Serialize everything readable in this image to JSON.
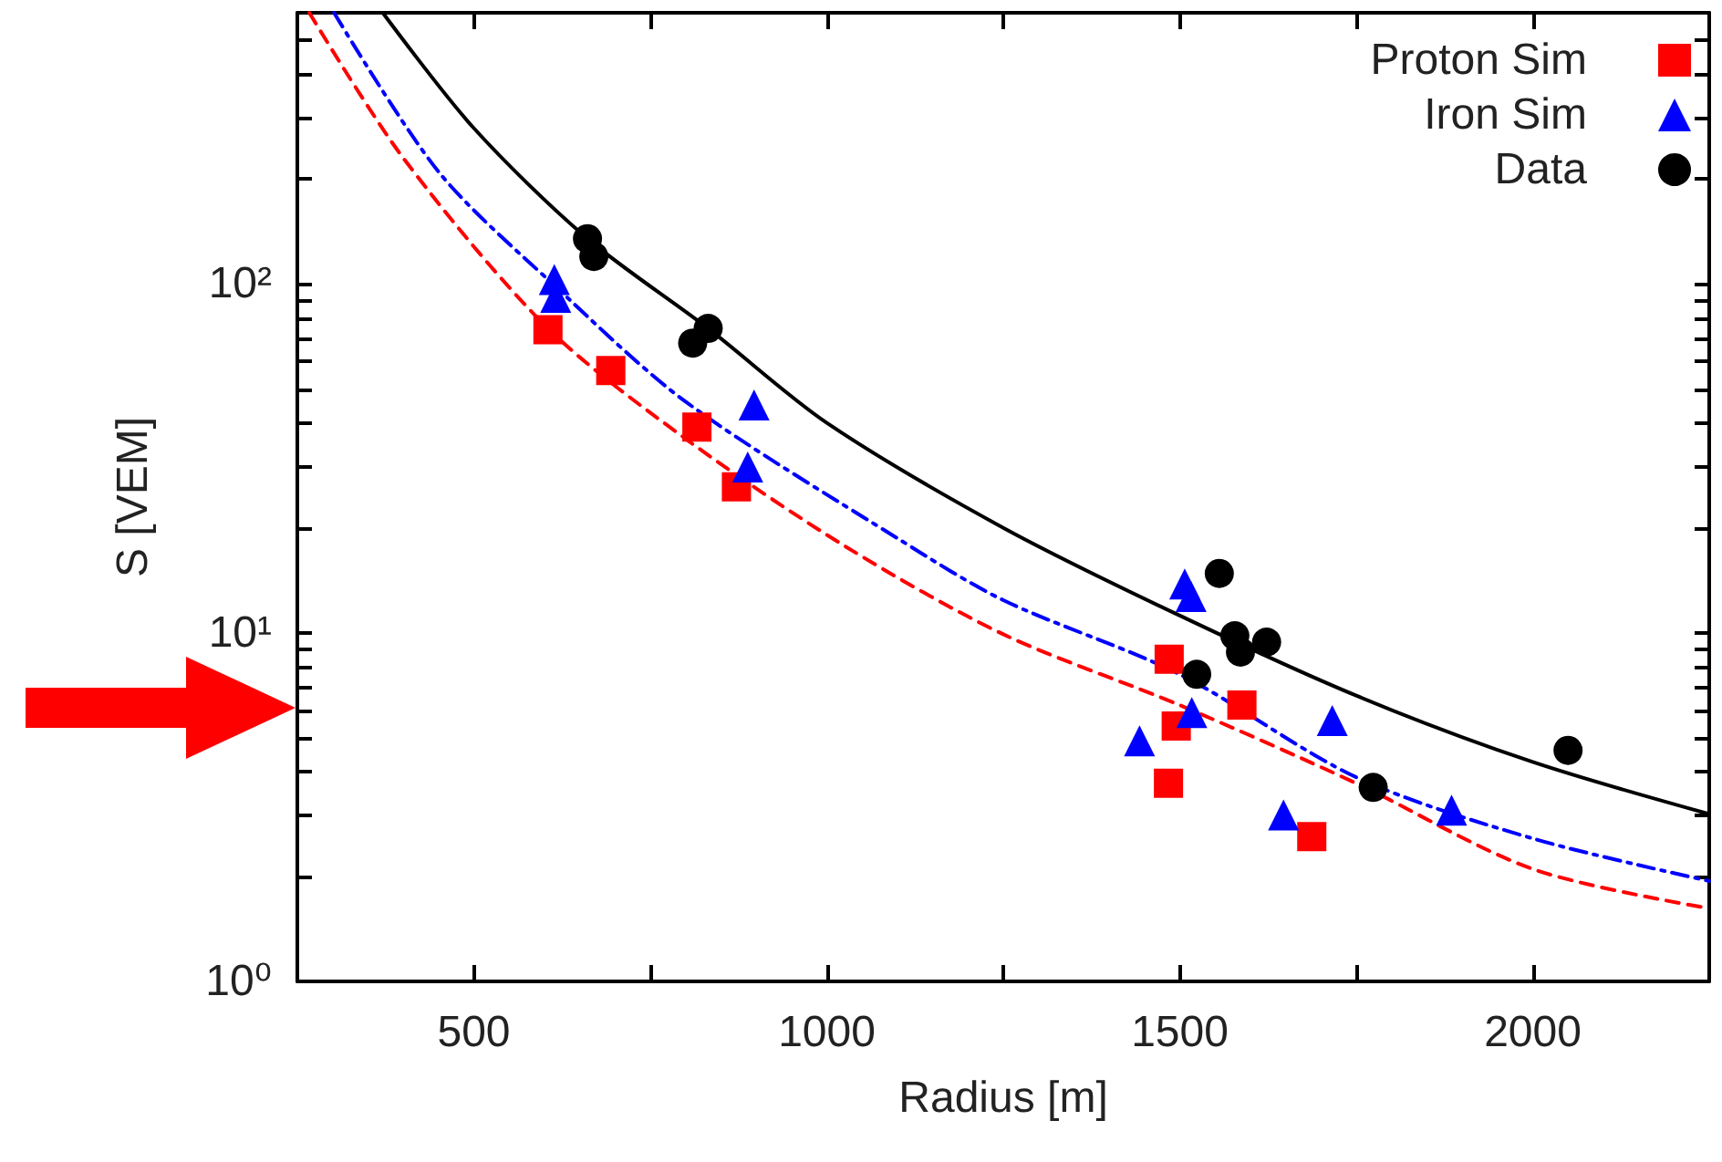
{
  "chart_data": {
    "type": "scatter",
    "xlabel": "Radius [m]",
    "ylabel": "S [VEM]",
    "log": "y",
    "grid": false,
    "legend": "top right",
    "xlim": [
      250,
      2250
    ],
    "ylim": [
      1,
      600
    ],
    "xticks": [
      500,
      {
        "value": 750,
        "label": null
      },
      1000,
      {
        "value": 1250,
        "label": null
      },
      1500,
      {
        "value": 1750,
        "label": null
      },
      2000
    ],
    "yticks": [
      {
        "value": 1,
        "label": "10⁰"
      },
      {
        "value": 2,
        "label": null
      },
      {
        "value": 3,
        "label": null
      },
      {
        "value": 4,
        "label": null
      },
      {
        "value": 5,
        "label": null
      },
      {
        "value": 6,
        "label": null
      },
      {
        "value": 7,
        "label": null
      },
      {
        "value": 8,
        "label": null
      },
      {
        "value": 9,
        "label": null
      },
      {
        "value": 10,
        "label": "10¹"
      },
      {
        "value": 20,
        "label": null
      },
      {
        "value": 30,
        "label": null
      },
      {
        "value": 40,
        "label": null
      },
      {
        "value": 50,
        "label": null
      },
      {
        "value": 60,
        "label": null
      },
      {
        "value": 70,
        "label": null
      },
      {
        "value": 80,
        "label": null
      },
      {
        "value": 90,
        "label": null
      },
      {
        "value": 100,
        "label": "10²"
      },
      {
        "value": 200,
        "label": null
      },
      {
        "value": 300,
        "label": null
      },
      {
        "value": 400,
        "label": null
      },
      {
        "value": 500,
        "label": null
      }
    ],
    "series": [
      {
        "name": "Proton Sim",
        "marker": "square",
        "color": "#ff0000",
        "x": [
          605,
          694,
          816,
          872,
          1485,
          1495,
          1484,
          1588,
          1687
        ],
        "values": [
          74,
          56.5,
          38.9,
          26.2,
          8.4,
          5.4,
          3.7,
          6.2,
          2.6
        ]
      },
      {
        "name": "Iron Sim",
        "marker": "triangle",
        "color": "#0000ff",
        "x": [
          614,
          616,
          897,
          888,
          1507,
          1516,
          1517,
          1443,
          1716,
          1647,
          1885
        ],
        "values": [
          103,
          91.6,
          45,
          29.9,
          13.8,
          12.7,
          5.9,
          4.9,
          5.6,
          3.0,
          3.1
        ]
      },
      {
        "name": "Data",
        "marker": "circle",
        "color": "#000000",
        "x": [
          661,
          670,
          832,
          810,
          1556,
          1578,
          1586,
          1623,
          1524,
          1774,
          2050
        ],
        "values": [
          135,
          120,
          74.6,
          67.7,
          14.8,
          9.8,
          8.8,
          9.4,
          7.6,
          3.6,
          4.6
        ]
      },
      {
        "type": "line",
        "marker": "none",
        "line_style": "dashed",
        "color": "#ff0000",
        "x": [
          267,
          400,
          604,
          800,
          1026,
          1250,
          1500,
          1750,
          2000,
          2250
        ],
        "values": [
          600,
          230,
          75,
          36,
          17.7,
          9.9,
          6.2,
          3.7,
          2.1,
          1.62
        ]
      },
      {
        "type": "line",
        "marker": "none",
        "line_style": "dashdot",
        "color": "#0000ff",
        "x": [
          302,
          450,
          612,
          800,
          1103,
          1250,
          1500,
          1750,
          2000,
          2250
        ],
        "values": [
          600,
          210,
          100,
          46,
          18.5,
          12.4,
          7.6,
          3.85,
          2.57,
          1.94
        ]
      },
      {
        "type": "line",
        "marker": "none",
        "line_style": "solid",
        "color": "#000000",
        "x": [
          371,
          500,
          661,
          832,
          1000,
          1250,
          1500,
          1750,
          2000,
          2250
        ],
        "values": [
          600,
          280,
          135,
          74.6,
          40,
          20,
          11.2,
          6.6,
          4.26,
          3.02
        ]
      }
    ]
  }
}
